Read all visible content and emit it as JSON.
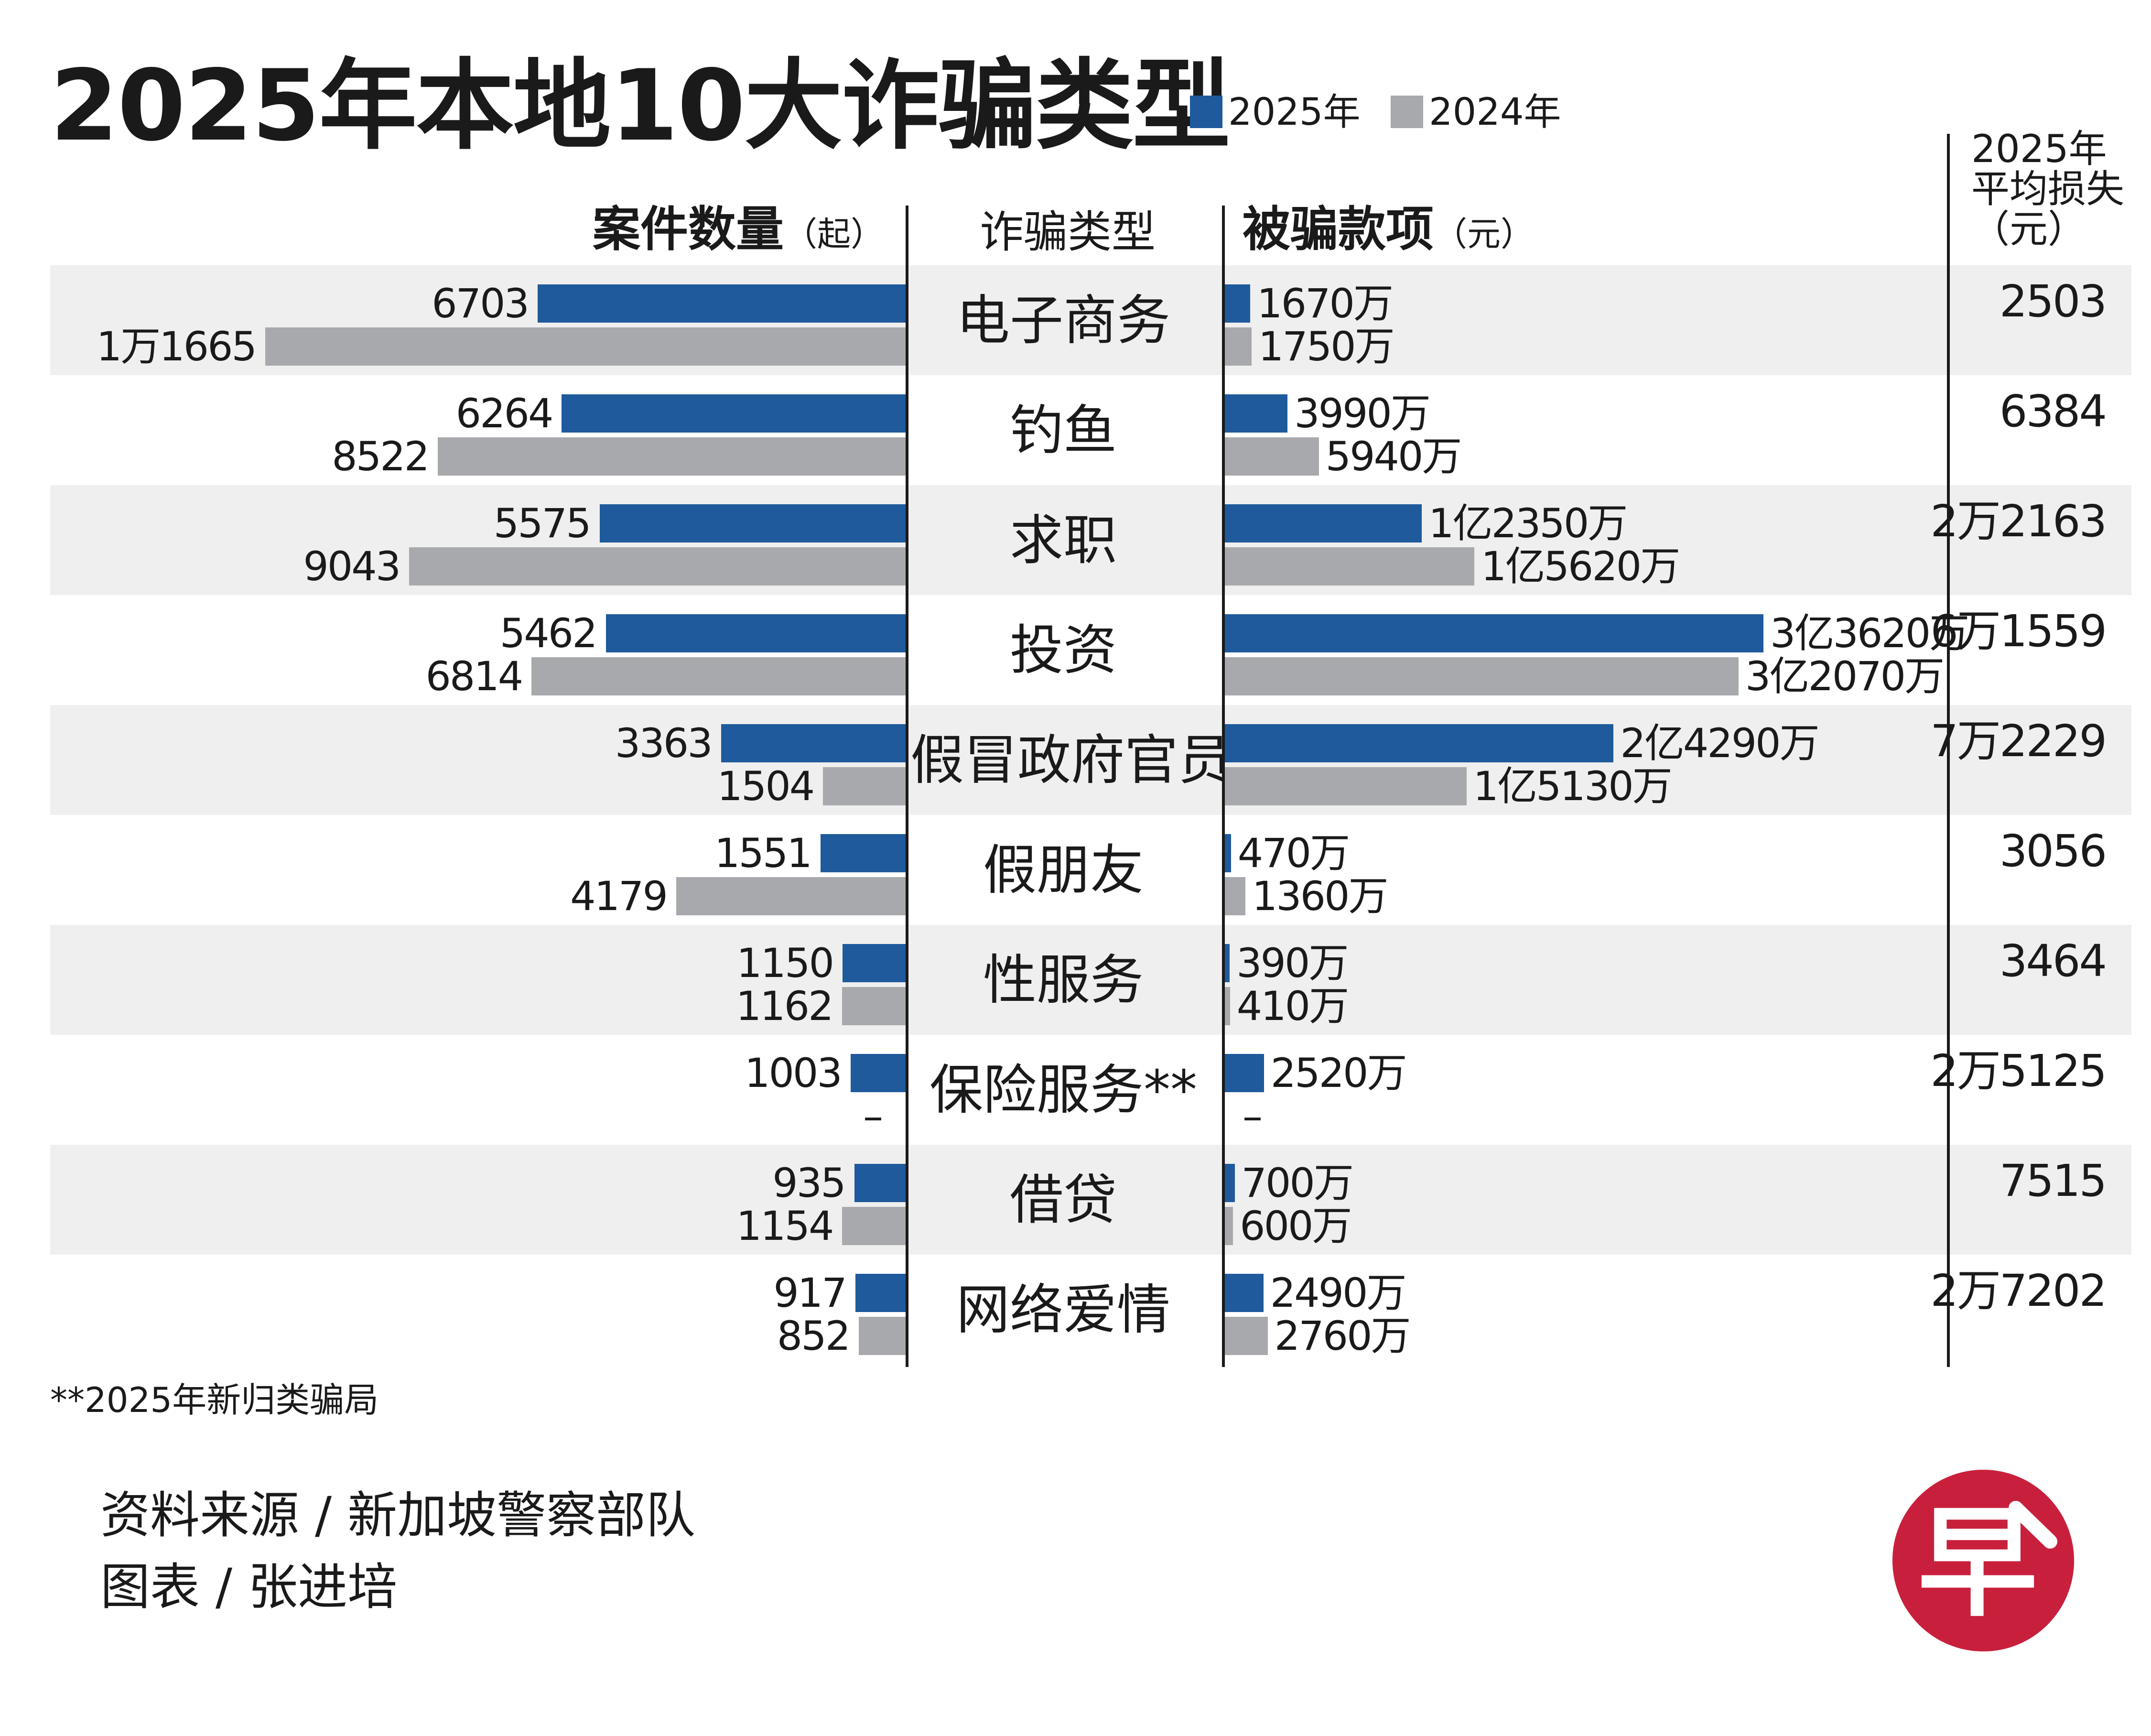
{
  "title": "2025年本地10大诈骗类型",
  "legend": [
    {
      "label": "2025年",
      "color": "#1f5a9c"
    },
    {
      "label": "2024年",
      "color": "#a7a9ac"
    }
  ],
  "headers": {
    "cases_title": "案件数量",
    "cases_unit": "（起）",
    "type_title": "诈骗类型",
    "amount_title": "被骗款项",
    "amount_unit": "（元）",
    "avg_line1": "2025年",
    "avg_line2": "平均损失",
    "avg_line3": "（元）"
  },
  "chart_data": {
    "type": "bar",
    "title": "2025年本地10大诈骗类型",
    "categories": [
      "电子商务",
      "钓鱼",
      "求职",
      "投资",
      "假冒政府官员",
      "假朋友",
      "性服务",
      "保险服务**",
      "借贷",
      "网络爱情"
    ],
    "cases": {
      "unit": "起",
      "series": [
        {
          "name": "2025年",
          "values": [
            6703,
            6264,
            5575,
            5462,
            3363,
            1551,
            1150,
            1003,
            935,
            917
          ]
        },
        {
          "name": "2024年",
          "values": [
            11665,
            8522,
            9043,
            6814,
            1504,
            4179,
            1162,
            null,
            1154,
            852
          ]
        }
      ],
      "labels_2025": [
        "6703",
        "6264",
        "5575",
        "5462",
        "3363",
        "1551",
        "1150",
        "1003",
        "935",
        "917"
      ],
      "labels_2024": [
        "1万1665",
        "8522",
        "9043",
        "6814",
        "1504",
        "4179",
        "1162",
        "–",
        "1154",
        "852"
      ]
    },
    "amount": {
      "unit": "元",
      "series": [
        {
          "name": "2025年",
          "values": [
            16700000,
            39900000,
            123500000,
            336200000,
            242900000,
            4700000,
            3900000,
            25200000,
            7000000,
            24900000
          ]
        },
        {
          "name": "2024年",
          "values": [
            17500000,
            59400000,
            156200000,
            320700000,
            151300000,
            13600000,
            4100000,
            null,
            6000000,
            27600000
          ]
        }
      ],
      "labels_2025": [
        "1670万",
        "3990万",
        "1亿2350万",
        "3亿3620万",
        "2亿4290万",
        "470万",
        "390万",
        "2520万",
        "700万",
        "2490万"
      ],
      "labels_2024": [
        "1750万",
        "5940万",
        "1亿5620万",
        "3亿2070万",
        "1亿5130万",
        "1360万",
        "410万",
        "–",
        "600万",
        "2760万"
      ]
    },
    "avg_loss_2025": [
      "2503",
      "6384",
      "2万2163",
      "6万1559",
      "7万2229",
      "3056",
      "3464",
      "2万5125",
      "7515",
      "2万7202"
    ]
  },
  "footnote": "**2025年新归类骗局",
  "source": "资料来源 / 新加坡警察部队",
  "credit": "图表 / 张进培",
  "logo_char": "早"
}
